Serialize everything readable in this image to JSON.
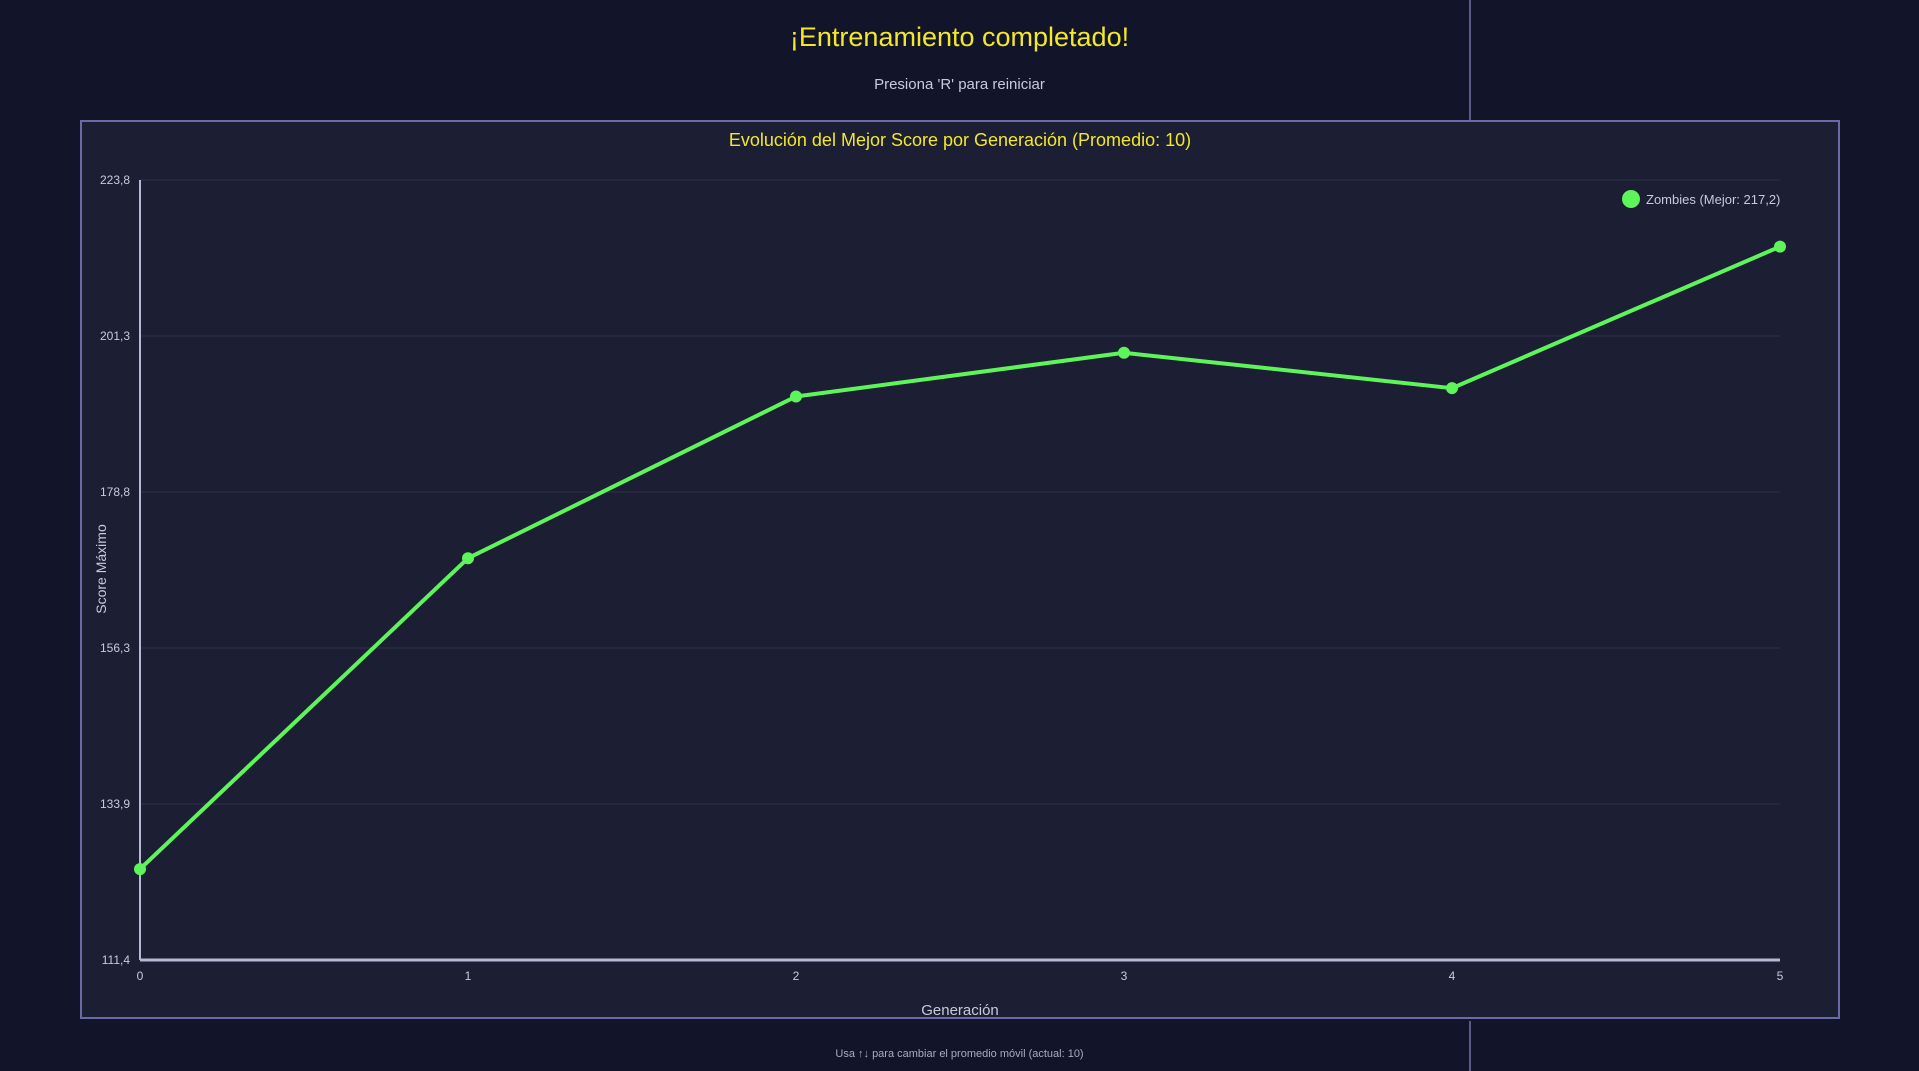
{
  "header": {
    "title": "¡Entrenamiento completado!",
    "subtitle": "Presiona 'R' para reiniciar"
  },
  "footer": {
    "hint": "Usa ↑↓ para cambiar el promedio móvil (actual: 10)"
  },
  "colors": {
    "background": "#12142a",
    "panel": "#1c1e33",
    "panel_border": "#6a6aa6",
    "title": "#f2e82b",
    "series": "#5df55a",
    "grid": "#2e3048",
    "axis": "#b8b8d4",
    "text": "#c8cadb"
  },
  "chart_data": {
    "type": "line",
    "title": "Evolución del Mejor Score por Generación (Promedio: 10)",
    "xlabel": "Generación",
    "ylabel": "Score Máximo",
    "x": [
      0,
      1,
      2,
      3,
      4,
      5
    ],
    "xlim": [
      0,
      5
    ],
    "ylim": [
      111.4,
      223.8
    ],
    "yticks": [
      "111,4",
      "133,9",
      "156,3",
      "178,8",
      "201,3",
      "223,8"
    ],
    "xticks": [
      "0",
      "1",
      "2",
      "3",
      "4",
      "5"
    ],
    "grid": true,
    "legend_position": "top-right",
    "series": [
      {
        "name": "Zombies (Mejor: 217,2)",
        "values": [
          124.5,
          169.3,
          192.6,
          198.9,
          193.8,
          214.2
        ]
      }
    ]
  }
}
